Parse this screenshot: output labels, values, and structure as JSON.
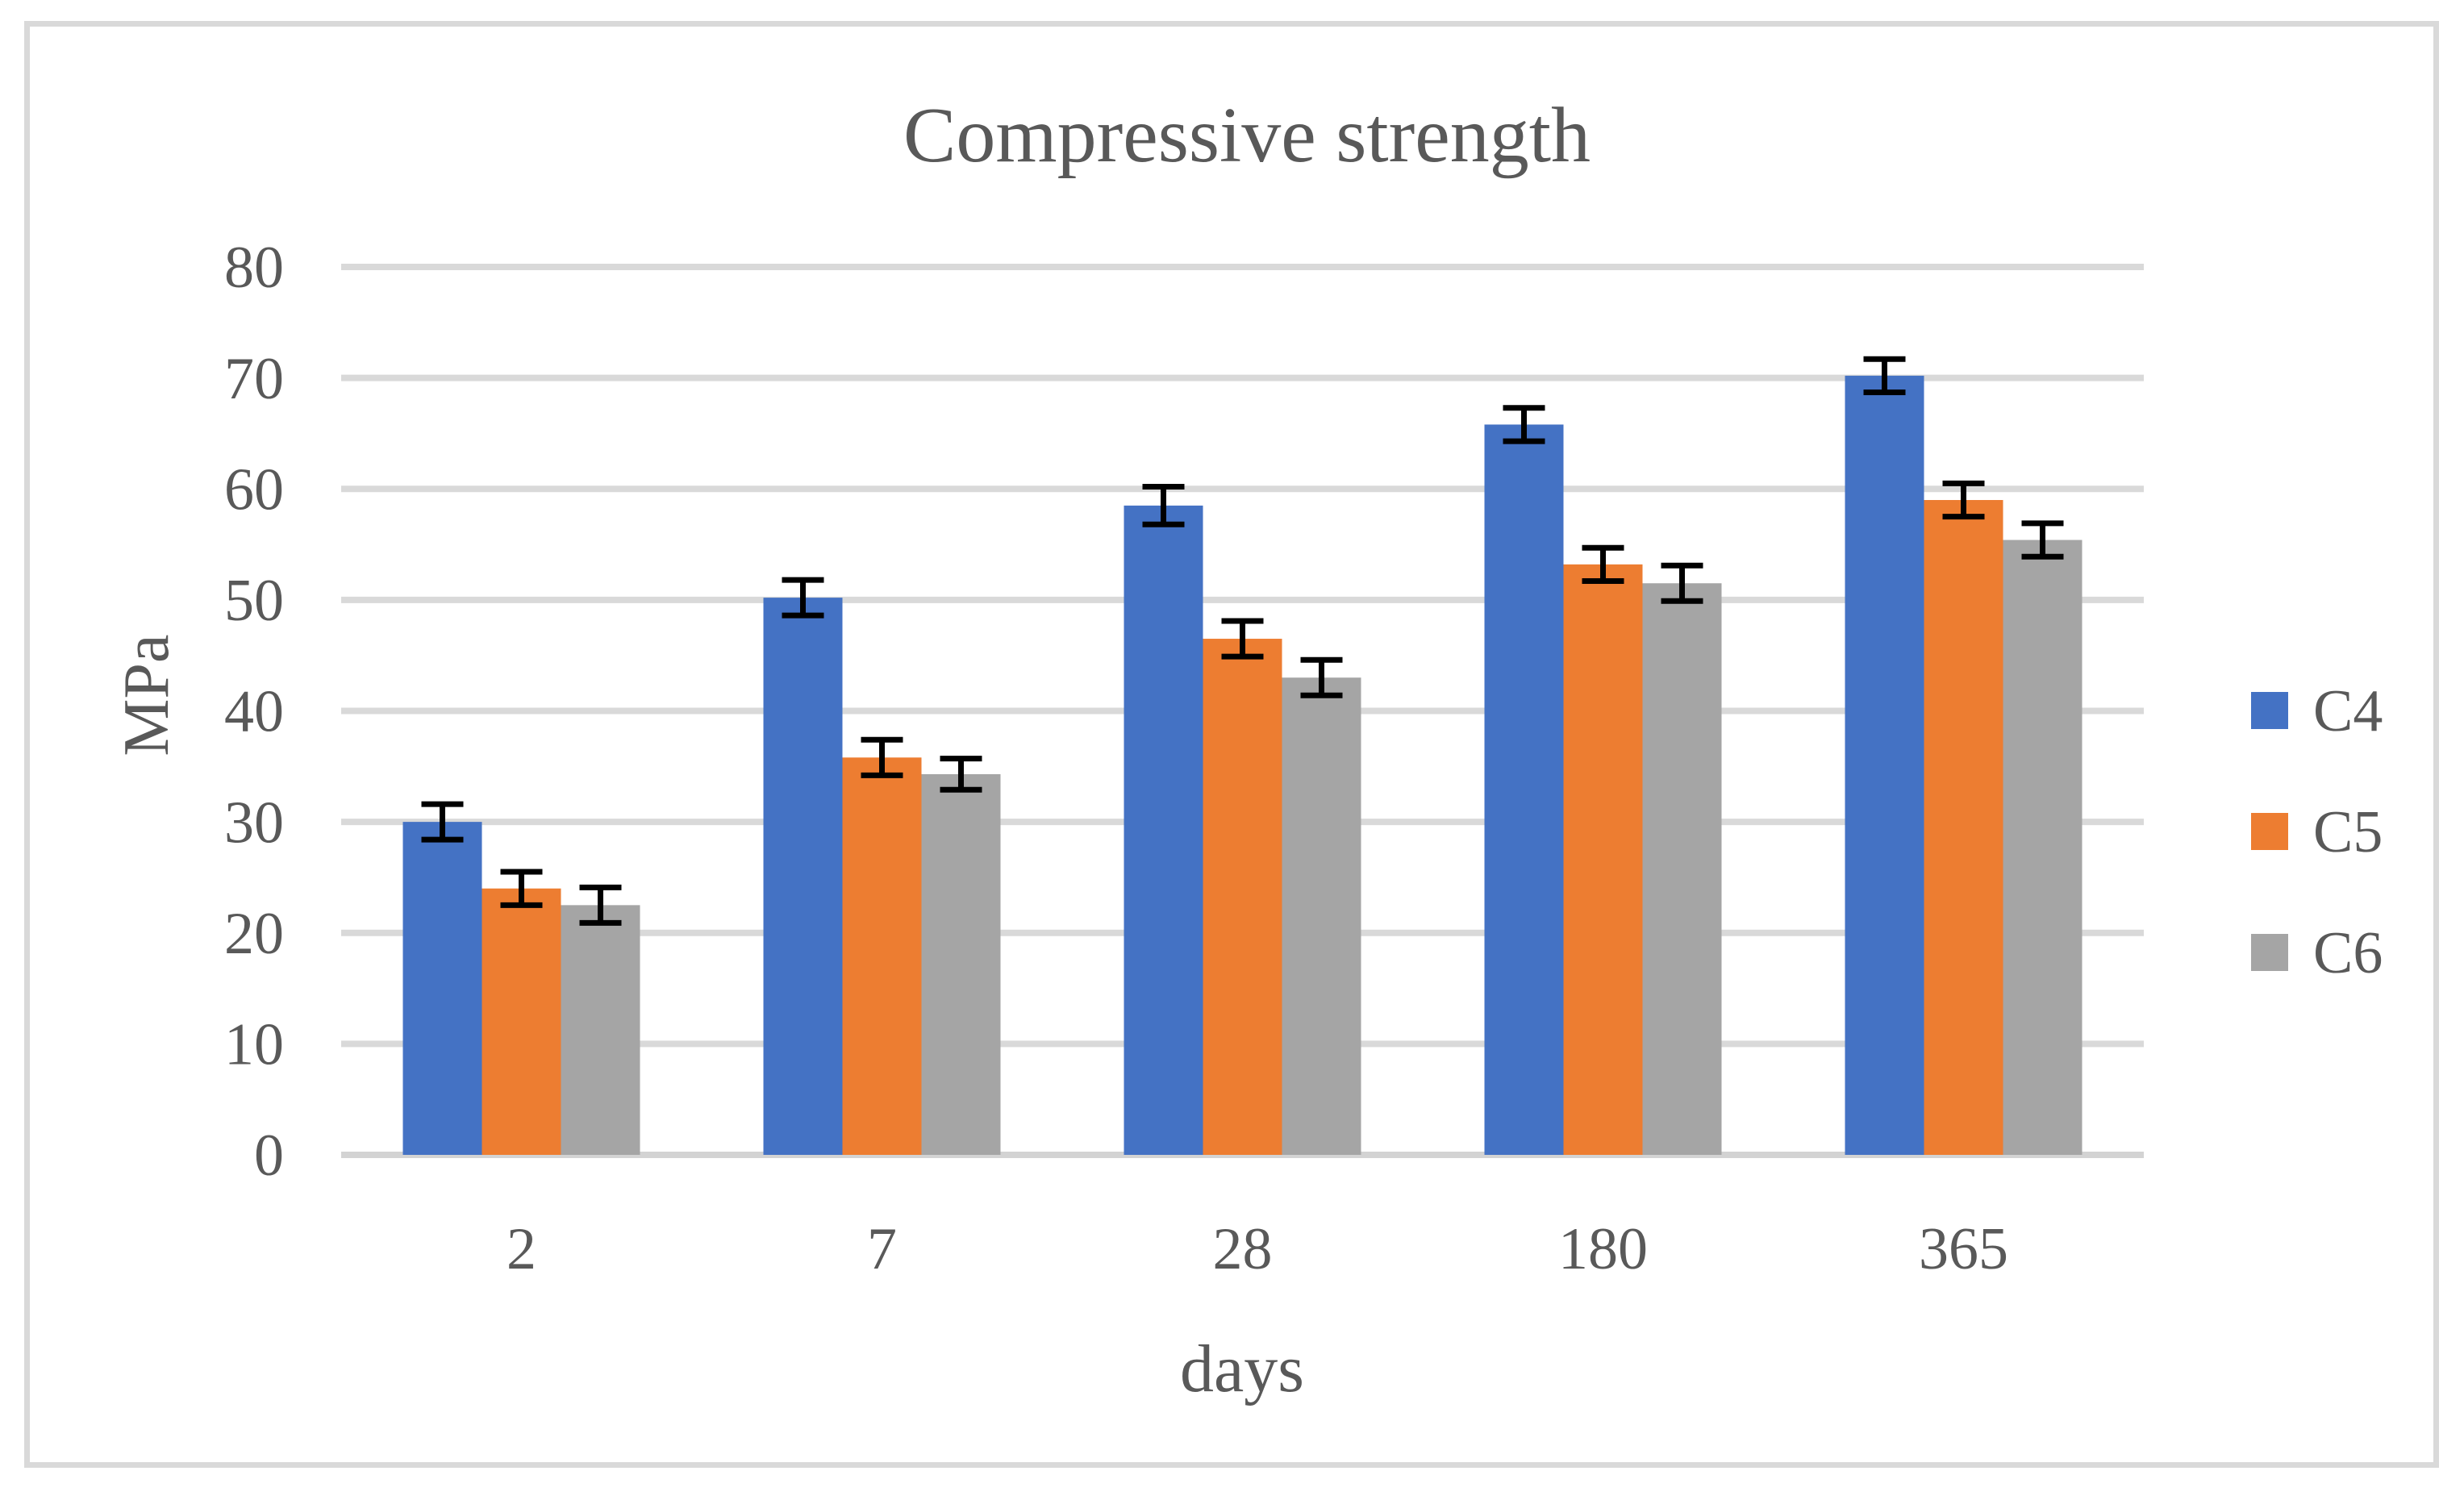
{
  "chart_data": {
    "type": "bar",
    "title": "Compressive strength",
    "xlabel": "days",
    "ylabel": "MPa",
    "categories": [
      "2",
      "7",
      "28",
      "180",
      "365"
    ],
    "series": [
      {
        "name": "C4",
        "color": "#4472C4",
        "values": [
          30.0,
          50.2,
          58.5,
          65.8,
          70.2
        ],
        "errors": [
          1.6,
          1.6,
          1.7,
          1.5,
          1.5
        ]
      },
      {
        "name": "C5",
        "color": "#ED7D31",
        "values": [
          24.0,
          35.8,
          46.5,
          53.2,
          59.0
        ],
        "errors": [
          1.5,
          1.6,
          1.6,
          1.5,
          1.5
        ]
      },
      {
        "name": "C6",
        "color": "#A5A5A5",
        "values": [
          22.5,
          34.3,
          43.0,
          51.5,
          55.4
        ],
        "errors": [
          1.6,
          1.4,
          1.6,
          1.6,
          1.5
        ]
      }
    ],
    "ylim": [
      0,
      80
    ],
    "y_ticks": [
      "0",
      "10",
      "20",
      "30",
      "40",
      "50",
      "60",
      "70",
      "80"
    ],
    "grid": "horizontal",
    "legend_position": "right",
    "legend_entries": [
      "C4",
      "C5",
      "C6"
    ],
    "error_bar_color": "#000000",
    "gridline_color": "#d9d9d9",
    "axis_line_color": "#d3d3d3",
    "text_color": "#595959",
    "frame_border_color": "#d9d9d9",
    "background_color": "#ffffff"
  }
}
